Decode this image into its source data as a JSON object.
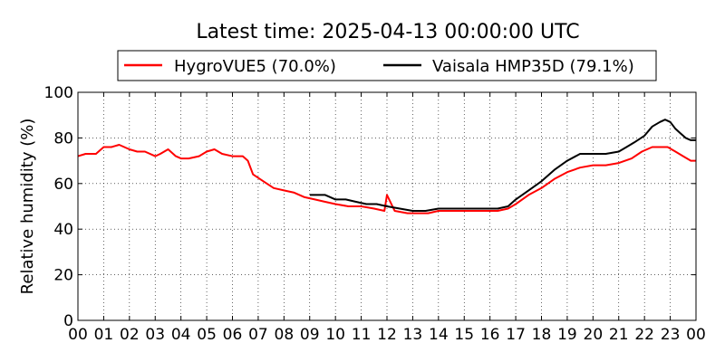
{
  "chart_data": {
    "type": "line",
    "title": "Latest time: 2025-04-13 00:00:00 UTC",
    "xlabel": "",
    "ylabel": "Relative humidity (%)",
    "xlim": [
      0,
      24
    ],
    "ylim": [
      0,
      100
    ],
    "grid": true,
    "legend_position": "top",
    "x_ticks": [
      {
        "value": 0,
        "label": "00"
      },
      {
        "value": 1,
        "label": "01"
      },
      {
        "value": 2,
        "label": "02"
      },
      {
        "value": 3,
        "label": "03"
      },
      {
        "value": 4,
        "label": "04"
      },
      {
        "value": 5,
        "label": "05"
      },
      {
        "value": 6,
        "label": "06"
      },
      {
        "value": 7,
        "label": "07"
      },
      {
        "value": 8,
        "label": "08"
      },
      {
        "value": 9,
        "label": "09"
      },
      {
        "value": 10,
        "label": "10"
      },
      {
        "value": 11,
        "label": "11"
      },
      {
        "value": 12,
        "label": "12"
      },
      {
        "value": 13,
        "label": "13"
      },
      {
        "value": 14,
        "label": "14"
      },
      {
        "value": 15,
        "label": "15"
      },
      {
        "value": 16,
        "label": "16"
      },
      {
        "value": 17,
        "label": "17"
      },
      {
        "value": 18,
        "label": "18"
      },
      {
        "value": 19,
        "label": "19"
      },
      {
        "value": 20,
        "label": "20"
      },
      {
        "value": 21,
        "label": "21"
      },
      {
        "value": 22,
        "label": "22"
      },
      {
        "value": 23,
        "label": "23"
      },
      {
        "value": 24,
        "label": "00"
      }
    ],
    "y_ticks": [
      {
        "value": 0,
        "label": "0"
      },
      {
        "value": 20,
        "label": "20"
      },
      {
        "value": 40,
        "label": "40"
      },
      {
        "value": 60,
        "label": "60"
      },
      {
        "value": 80,
        "label": "80"
      },
      {
        "value": 100,
        "label": "100"
      }
    ],
    "series": [
      {
        "name": "HygroVUE5 (70.0%)",
        "color": "#ff0000",
        "x": [
          0,
          0.3,
          0.7,
          1.0,
          1.3,
          1.6,
          2.0,
          2.3,
          2.6,
          3.0,
          3.2,
          3.5,
          3.8,
          4.0,
          4.3,
          4.7,
          5.0,
          5.3,
          5.6,
          6.0,
          6.4,
          6.6,
          6.8,
          7.2,
          7.6,
          8.0,
          8.4,
          8.8,
          9.2,
          9.6,
          10.0,
          10.5,
          11.0,
          11.5,
          11.9,
          12.0,
          12.3,
          12.8,
          13.2,
          13.6,
          14.0,
          14.5,
          15.0,
          15.5,
          16.0,
          16.3,
          16.7,
          17.0,
          17.5,
          18.0,
          18.5,
          19.0,
          19.5,
          20.0,
          20.5,
          21.0,
          21.5,
          21.9,
          22.3,
          22.7,
          22.9,
          23.2,
          23.5,
          23.8,
          24.0
        ],
        "y": [
          72,
          73,
          73,
          76,
          76,
          77,
          75,
          74,
          74,
          72,
          73,
          75,
          72,
          71,
          71,
          72,
          74,
          75,
          73,
          72,
          72,
          70,
          64,
          61,
          58,
          57,
          56,
          54,
          53,
          52,
          51,
          50,
          50,
          49,
          48,
          55,
          48,
          47,
          47,
          47,
          48,
          48,
          48,
          48,
          48,
          48,
          49,
          51,
          55,
          58,
          62,
          65,
          67,
          68,
          68,
          69,
          71,
          74,
          76,
          76,
          76,
          74,
          72,
          70,
          70
        ]
      },
      {
        "name": "Vaisala HMP35D (79.1%)",
        "color": "#000000",
        "x": [
          9.0,
          9.3,
          9.6,
          10.0,
          10.4,
          10.8,
          11.2,
          11.6,
          12.0,
          12.5,
          13.0,
          13.5,
          14.0,
          14.5,
          15.0,
          15.5,
          16.0,
          16.3,
          16.7,
          17.0,
          17.5,
          18.0,
          18.5,
          19.0,
          19.5,
          20.0,
          20.5,
          21.0,
          21.3,
          21.6,
          22.0,
          22.3,
          22.6,
          22.8,
          23.0,
          23.2,
          23.4,
          23.6,
          23.8,
          24.0
        ],
        "y": [
          55,
          55,
          55,
          53,
          53,
          52,
          51,
          51,
          50,
          49,
          48,
          48,
          49,
          49,
          49,
          49,
          49,
          49,
          50,
          53,
          57,
          61,
          66,
          70,
          73,
          73,
          73,
          74,
          76,
          78,
          81,
          85,
          87,
          88,
          87,
          84,
          82,
          80,
          79,
          79
        ]
      }
    ]
  }
}
